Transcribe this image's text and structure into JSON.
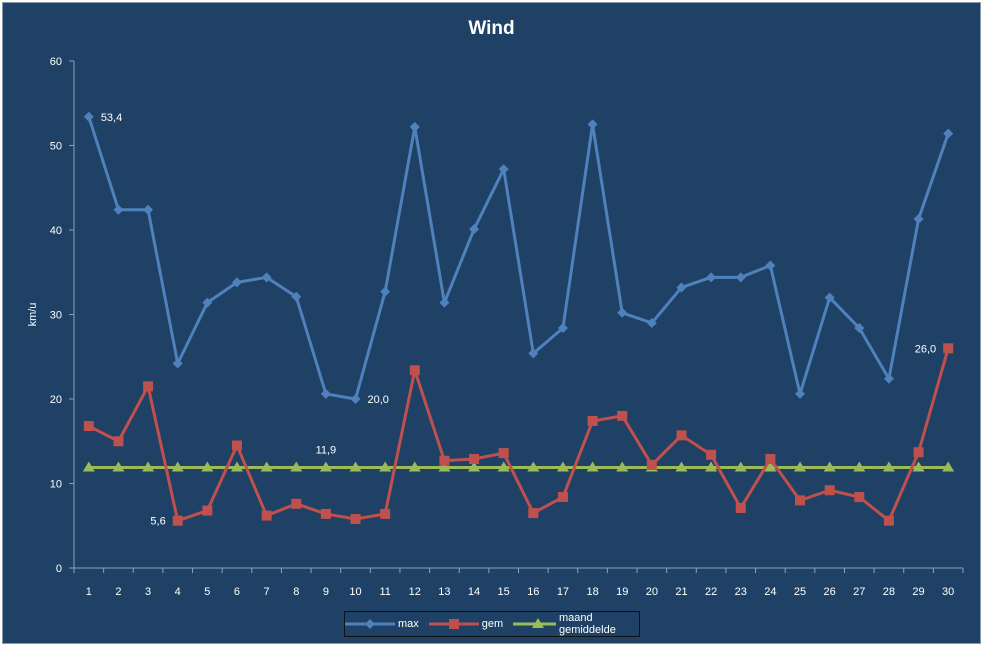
{
  "chart_data": {
    "type": "line",
    "title": "Wind",
    "ylabel": "km/u",
    "xlabel": "",
    "ylim": [
      0,
      60
    ],
    "yticks": [
      0,
      10,
      20,
      30,
      40,
      50,
      60
    ],
    "categories": [
      "1",
      "2",
      "3",
      "4",
      "5",
      "6",
      "7",
      "8",
      "9",
      "10",
      "11",
      "12",
      "13",
      "14",
      "15",
      "16",
      "17",
      "18",
      "19",
      "20",
      "21",
      "22",
      "23",
      "24",
      "25",
      "26",
      "27",
      "28",
      "29",
      "30"
    ],
    "series": [
      {
        "name": "max",
        "color": "#4f81bd",
        "marker": "diamond",
        "values": [
          53.4,
          42.4,
          42.4,
          24.2,
          31.4,
          33.8,
          34.4,
          32.1,
          20.6,
          20.0,
          32.7,
          52.2,
          31.4,
          40.1,
          47.2,
          25.4,
          28.4,
          52.5,
          30.2,
          29.0,
          33.2,
          34.4,
          34.4,
          35.8,
          20.6,
          32.0,
          28.4,
          22.4,
          41.3,
          51.4
        ]
      },
      {
        "name": "gem",
        "color": "#c0504d",
        "marker": "square",
        "values": [
          16.8,
          15.0,
          21.5,
          5.6,
          6.8,
          14.5,
          6.2,
          7.6,
          6.4,
          5.8,
          6.4,
          23.4,
          12.7,
          12.9,
          13.6,
          6.5,
          8.4,
          17.4,
          18.0,
          12.2,
          15.7,
          13.4,
          7.1,
          12.9,
          8.0,
          9.2,
          8.4,
          5.6,
          13.7,
          26.0
        ]
      },
      {
        "name": "maand gemiddelde",
        "color": "#9bbb59",
        "marker": "triangle",
        "values": [
          11.9,
          11.9,
          11.9,
          11.9,
          11.9,
          11.9,
          11.9,
          11.9,
          11.9,
          11.9,
          11.9,
          11.9,
          11.9,
          11.9,
          11.9,
          11.9,
          11.9,
          11.9,
          11.9,
          11.9,
          11.9,
          11.9,
          11.9,
          11.9,
          11.9,
          11.9,
          11.9,
          11.9,
          11.9,
          11.9
        ]
      }
    ],
    "data_labels": [
      {
        "series": 0,
        "index": 0,
        "text": "53,4",
        "pos": "right"
      },
      {
        "series": 0,
        "index": 9,
        "text": "20,0",
        "pos": "right"
      },
      {
        "series": 1,
        "index": 3,
        "text": "5,6",
        "pos": "left"
      },
      {
        "series": 1,
        "index": 29,
        "text": "26,0",
        "pos": "left"
      },
      {
        "series": 2,
        "index": 8,
        "text": "11,9",
        "pos": "above"
      }
    ],
    "grid": false,
    "legend": "bottom",
    "background": "#1f4165"
  }
}
